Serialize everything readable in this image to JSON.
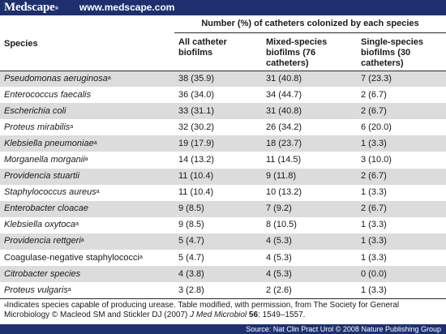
{
  "banner": {
    "brand": "Medscape",
    "brand_mark": "®",
    "site": "www.medscape.com",
    "color": "#1e2f6e"
  },
  "table": {
    "species_header": "Species",
    "group_header": "Number (%) of catheters colonized by each species",
    "columns": [
      "All catheter biofilms",
      "Mixed-species biofilms (76 catheters)",
      "Single-species biofilms (30 catheters)"
    ],
    "rows": [
      {
        "species": "Pseudomonas aeruginosa",
        "urease": true,
        "italic": true,
        "all": "38 (35.9)",
        "mixed": "31 (40.8)",
        "single": "7 (23.3)"
      },
      {
        "species": "Enterococcus faecalis",
        "urease": false,
        "italic": true,
        "all": "36 (34.0)",
        "mixed": "34 (44.7)",
        "single": "2 (6.7)"
      },
      {
        "species": "Escherichia coli",
        "urease": false,
        "italic": true,
        "all": "33 (31.1)",
        "mixed": "31 (40.8)",
        "single": "2 (6.7)"
      },
      {
        "species": "Proteus mirabilis",
        "urease": true,
        "italic": true,
        "all": "32 (30.2)",
        "mixed": "26 (34.2)",
        "single": "6 (20.0)"
      },
      {
        "species": "Klebsiella pneumoniae",
        "urease": true,
        "italic": true,
        "all": "19 (17.9)",
        "mixed": "18 (23.7)",
        "single": "1 (3.3)"
      },
      {
        "species": "Morganella morganii",
        "urease": true,
        "italic": true,
        "all": "14 (13.2)",
        "mixed": "11 (14.5)",
        "single": "3 (10.0)"
      },
      {
        "species": "Providencia stuartii",
        "urease": false,
        "italic": true,
        "all": "11 (10.4)",
        "mixed": "9 (11.8)",
        "single": "2 (6.7)"
      },
      {
        "species": "Staphylococcus aureus",
        "urease": true,
        "italic": true,
        "all": "11 (10.4)",
        "mixed": "10 (13.2)",
        "single": "1 (3.3)"
      },
      {
        "species": "Enterobacter cloacae",
        "urease": false,
        "italic": true,
        "all": "9 (8.5)",
        "mixed": "7 (9.2)",
        "single": "2 (6.7)"
      },
      {
        "species": "Klebsiella oxytoca",
        "urease": true,
        "italic": true,
        "all": "9 (8.5)",
        "mixed": "8 (10.5)",
        "single": "1 (3.3)"
      },
      {
        "species": "Providencia rettgeri",
        "urease": true,
        "italic": true,
        "all": "5 (4.7)",
        "mixed": "4 (5.3)",
        "single": "1 (3.3)"
      },
      {
        "species": "Coagulase-negative staphylococci",
        "urease": true,
        "italic": false,
        "all": "5 (4.7)",
        "mixed": "4 (5.3)",
        "single": "1 (3.3)"
      },
      {
        "species": "Citrobacter species",
        "urease": false,
        "italic": true,
        "all": "4 (3.8)",
        "mixed": "4 (5.3)",
        "single": "0 (0.0)"
      },
      {
        "species": "Proteus vulgaris",
        "urease": true,
        "italic": true,
        "all": "3 (2.8)",
        "mixed": "2 (2.6)",
        "single": "1 (3.3)"
      }
    ],
    "superscript": "a",
    "row_shade_color": "#dcdcdc"
  },
  "footnote": {
    "marker": "a",
    "text_1": "Indicates species capable of producing urease. Table modified, with permission, from The Society for General Microbiology © Macleod SM and Stickler DJ (2007) ",
    "journal": "J Med Microbiol",
    "volume": " 56",
    "pages": ": 1549–1557."
  },
  "source": "Source: Nat Clin Pract Urol © 2008 Nature Publishing Group"
}
